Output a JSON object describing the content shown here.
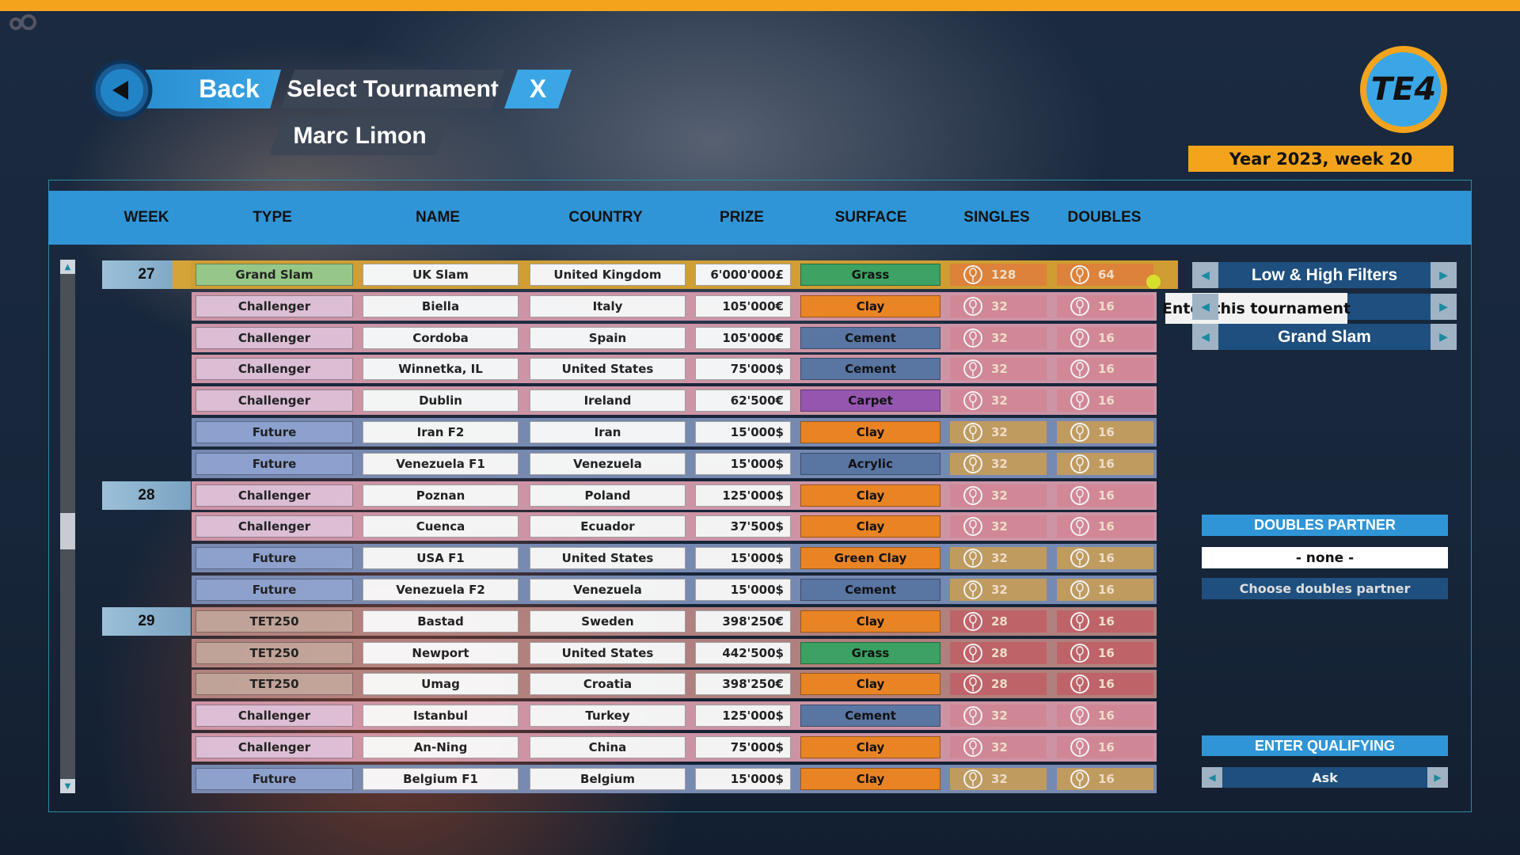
{
  "header": {
    "back": "Back",
    "title": "Select Tournament",
    "close": "X",
    "player": "Marc Limon",
    "logo": "TE4",
    "date": "Year 2023, week 20"
  },
  "table": {
    "columns": [
      "WEEK",
      "TYPE",
      "NAME",
      "COUNTRY",
      "PRIZE",
      "SURFACE",
      "SINGLES",
      "DOUBLES"
    ],
    "rows": [
      {
        "week": "27",
        "type": "Grand Slam",
        "name": "UK Slam",
        "country": "United Kingdom",
        "prize": "6'000'000£",
        "surface": "Grass",
        "singles": 128,
        "doubles": 64,
        "colors": {
          "row": "#d9a431",
          "type": "#9ccf8c",
          "count": "#e8873a",
          "surface": "#3fa865"
        }
      },
      {
        "type": "Challenger",
        "name": "Biella",
        "country": "Italy",
        "prize": "105'000€",
        "surface": "Clay",
        "singles": 32,
        "doubles": 16,
        "colors": {
          "row": "#d69aab",
          "type": "#e6c6dd",
          "count": "#db8d9b",
          "surface": "#f58a24"
        }
      },
      {
        "type": "Challenger",
        "name": "Cordoba",
        "country": "Spain",
        "prize": "105'000€",
        "surface": "Cement",
        "singles": 32,
        "doubles": 16,
        "colors": {
          "row": "#d69aab",
          "type": "#e6c6dd",
          "count": "#db8d9b",
          "surface": "#5d7aa8"
        }
      },
      {
        "type": "Challenger",
        "name": "Winnetka, IL",
        "country": "United States",
        "prize": "75'000$",
        "surface": "Cement",
        "singles": 32,
        "doubles": 16,
        "colors": {
          "row": "#d69aab",
          "type": "#e6c6dd",
          "count": "#db8d9b",
          "surface": "#5d7aa8"
        }
      },
      {
        "type": "Challenger",
        "name": "Dublin",
        "country": "Ireland",
        "prize": "62'500€",
        "surface": "Carpet",
        "singles": 32,
        "doubles": 16,
        "colors": {
          "row": "#d69aab",
          "type": "#e6c6dd",
          "count": "#db8d9b",
          "surface": "#9b59b6"
        }
      },
      {
        "type": "Future",
        "name": "Iran F2",
        "country": "Iran",
        "prize": "15'000$",
        "surface": "Clay",
        "singles": 32,
        "doubles": 16,
        "colors": {
          "row": "#7c8fb8",
          "type": "#93a8d6",
          "count": "#c9a262",
          "surface": "#f58a24"
        }
      },
      {
        "type": "Future",
        "name": "Venezuela F1",
        "country": "Venezuela",
        "prize": "15'000$",
        "surface": "Acrylic",
        "singles": 32,
        "doubles": 16,
        "colors": {
          "row": "#7c8fb8",
          "type": "#93a8d6",
          "count": "#c9a262",
          "surface": "#5d7aa8"
        }
      },
      {
        "week": "28",
        "type": "Challenger",
        "name": "Poznan",
        "country": "Poland",
        "prize": "125'000$",
        "surface": "Clay",
        "singles": 32,
        "doubles": 16,
        "colors": {
          "row": "#d69aab",
          "type": "#e6c6dd",
          "count": "#db8d9b",
          "surface": "#f58a24"
        }
      },
      {
        "type": "Challenger",
        "name": "Cuenca",
        "country": "Ecuador",
        "prize": "37'500$",
        "surface": "Clay",
        "singles": 32,
        "doubles": 16,
        "colors": {
          "row": "#d69aab",
          "type": "#e6c6dd",
          "count": "#db8d9b",
          "surface": "#f58a24"
        }
      },
      {
        "type": "Future",
        "name": "USA F1",
        "country": "United States",
        "prize": "15'000$",
        "surface": "Green Clay",
        "singles": 32,
        "doubles": 16,
        "colors": {
          "row": "#7c8fb8",
          "type": "#93a8d6",
          "count": "#c9a262",
          "surface": "#f58a24"
        }
      },
      {
        "type": "Future",
        "name": "Venezuela F2",
        "country": "Venezuela",
        "prize": "15'000$",
        "surface": "Cement",
        "singles": 32,
        "doubles": 16,
        "colors": {
          "row": "#7c8fb8",
          "type": "#93a8d6",
          "count": "#c9a262",
          "surface": "#5d7aa8"
        }
      },
      {
        "week": "29",
        "type": "TET250",
        "name": "Bastad",
        "country": "Sweden",
        "prize": "398'250€",
        "surface": "Clay",
        "singles": 28,
        "doubles": 16,
        "colors": {
          "row": "#b98682",
          "type": "#c8aa9e",
          "count": "#c8686c",
          "surface": "#f58a24"
        }
      },
      {
        "type": "TET250",
        "name": "Newport",
        "country": "United States",
        "prize": "442'500$",
        "surface": "Grass",
        "singles": 28,
        "doubles": 16,
        "colors": {
          "row": "#b98682",
          "type": "#c8aa9e",
          "count": "#c8686c",
          "surface": "#3fa865"
        }
      },
      {
        "type": "TET250",
        "name": "Umag",
        "country": "Croatia",
        "prize": "398'250€",
        "surface": "Clay",
        "singles": 28,
        "doubles": 16,
        "colors": {
          "row": "#b98682",
          "type": "#c8aa9e",
          "count": "#c8686c",
          "surface": "#f58a24"
        }
      },
      {
        "type": "Challenger",
        "name": "Istanbul",
        "country": "Turkey",
        "prize": "125'000$",
        "surface": "Cement",
        "singles": 32,
        "doubles": 16,
        "colors": {
          "row": "#d69aab",
          "type": "#e6c6dd",
          "count": "#db8d9b",
          "surface": "#5d7aa8"
        }
      },
      {
        "type": "Challenger",
        "name": "An-Ning",
        "country": "China",
        "prize": "75'000$",
        "surface": "Clay",
        "singles": 32,
        "doubles": 16,
        "colors": {
          "row": "#d69aab",
          "type": "#e6c6dd",
          "count": "#db8d9b",
          "surface": "#f58a24"
        }
      },
      {
        "type": "Future",
        "name": "Belgium F1",
        "country": "Belgium",
        "prize": "15'000$",
        "surface": "Clay",
        "singles": 32,
        "doubles": 16,
        "colors": {
          "row": "#7c8fb8",
          "type": "#93a8d6",
          "count": "#c9a262",
          "surface": "#f58a24"
        }
      }
    ]
  },
  "side": {
    "filters": [
      "Low & High Filters",
      "Grand Slam"
    ],
    "tooltip": "Enter this tournament",
    "doubles": {
      "title": "DOUBLES PARTNER",
      "value": "- none -",
      "button": "Choose doubles partner"
    },
    "qualifying": {
      "title": "ENTER QUALIFYING",
      "value": "Ask"
    }
  }
}
